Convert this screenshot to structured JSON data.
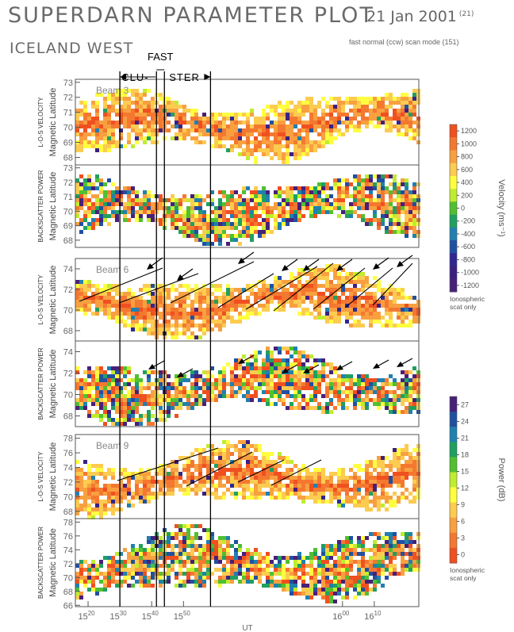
{
  "header": {
    "title": "SUPERDARN PARAMETER PLOT",
    "date": "21 Jan 2001",
    "date_sup": "(21)",
    "station": "ICELAND WEST",
    "scan_mode": "fast normal (ccw) scan mode (151)"
  },
  "annotations": {
    "fast": "FAST",
    "cluster_left": "CLU-",
    "cluster_right": "STER"
  },
  "colors": {
    "velocity_scale": [
      "#f05020",
      "#f47830",
      "#f8a040",
      "#fccc50",
      "#ffff40",
      "#c0ec30",
      "#50c030",
      "#20a060",
      "#2080b0",
      "#2050a0",
      "#302890",
      "#3a2080",
      "#482078"
    ],
    "power_scale": [
      "#482078",
      "#2050a0",
      "#2080b0",
      "#20a060",
      "#50c030",
      "#c0ec30",
      "#ffff40",
      "#fccc50",
      "#f8a040",
      "#f47830",
      "#f05020"
    ]
  },
  "chart_data": {
    "type": "heatmap",
    "x_axis": {
      "label": "UT",
      "tick_labels": [
        "15^20",
        "15^30",
        "15^40",
        "15^50",
        "16^00",
        "16^10"
      ],
      "range_min": [
        1516,
        1624
      ]
    },
    "panels": [
      {
        "beam": "Beam 3",
        "parameter": "L-O-S VELOCITY",
        "ylabel": "Magnetic Latitude",
        "yticks": [
          68,
          69,
          70,
          71,
          72,
          73
        ],
        "ylim": [
          67.5,
          73.2
        ]
      },
      {
        "beam": "",
        "parameter": "BACKSCATTER POWER",
        "ylabel": "Magnetic Latitude",
        "yticks": [
          68,
          69,
          70,
          71,
          72,
          73
        ],
        "ylim": [
          67.5,
          73.2
        ]
      },
      {
        "beam": "Beam 6",
        "parameter": "L-O-S VELOCITY",
        "ylabel": "Magnetic Latitude",
        "yticks": [
          68,
          70,
          72,
          74
        ],
        "ylim": [
          67,
          75
        ]
      },
      {
        "beam": "",
        "parameter": "BACKSCATTER POWER",
        "ylabel": "Magnetic Latitude",
        "yticks": [
          68,
          70,
          72,
          74
        ],
        "ylim": [
          67,
          75
        ]
      },
      {
        "beam": "Beam 9",
        "parameter": "L-O-S VELOCITY",
        "ylabel": "Magnetic Latitude",
        "yticks": [
          68,
          70,
          72,
          74,
          76,
          78
        ],
        "ylim": [
          67,
          78.5
        ]
      },
      {
        "beam": "",
        "parameter": "BACKSCATTER POWER",
        "ylabel": "Magnetic Latitude",
        "yticks": [
          66,
          68,
          70,
          72,
          74,
          76,
          78
        ],
        "ylim": [
          65.8,
          78.5
        ]
      }
    ],
    "velocity_colorbar": {
      "label": "Velocity (ms⁻¹)",
      "ticks": [
        "1200",
        "1000",
        "800",
        "600",
        "400",
        "200",
        "0",
        "-200",
        "-400",
        "-600",
        "-800",
        "-1000",
        "-1200"
      ],
      "note": "Ionospheric scat only"
    },
    "power_colorbar": {
      "label": "Power (dB)",
      "ticks": [
        "27",
        "24",
        "21",
        "18",
        "15",
        "12",
        "9",
        "6",
        "3",
        "0"
      ],
      "note": "Ionospheric scat only"
    },
    "vertical_lines_ut_min": [
      1530,
      1541.5,
      1544,
      1558.5
    ]
  }
}
